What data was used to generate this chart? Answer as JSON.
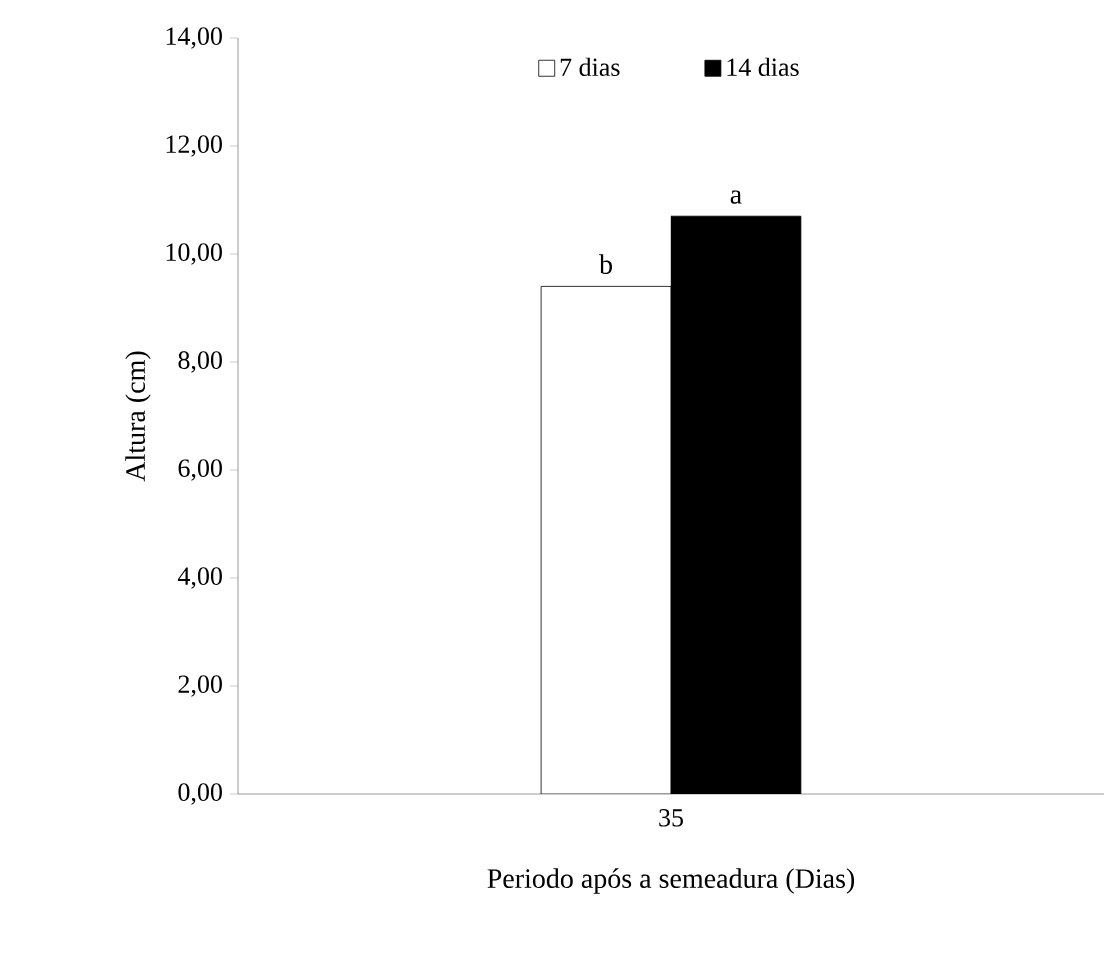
{
  "chart_data": {
    "type": "bar",
    "xlabel": "Periodo após a semeadura (Dias)",
    "ylabel": "Altura (cm)",
    "categories": [
      "35"
    ],
    "series": [
      {
        "name": "7 dias",
        "color": "#ffffff",
        "values": [
          9.4
        ]
      },
      {
        "name": "14 dias",
        "color": "#000000",
        "values": [
          10.7
        ]
      }
    ],
    "ylim": [
      0,
      14
    ],
    "yticks": [
      {
        "value": 0,
        "label": "0,00"
      },
      {
        "value": 2,
        "label": "2,00"
      },
      {
        "value": 4,
        "label": "4,00"
      },
      {
        "value": 6,
        "label": "6,00"
      },
      {
        "value": 8,
        "label": "8,00"
      },
      {
        "value": 10,
        "label": "10,00"
      },
      {
        "value": 12,
        "label": "12,00"
      },
      {
        "value": 14,
        "label": "14,00"
      }
    ],
    "annotations": [
      "b",
      "a"
    ],
    "legend": "top",
    "grid": false
  }
}
